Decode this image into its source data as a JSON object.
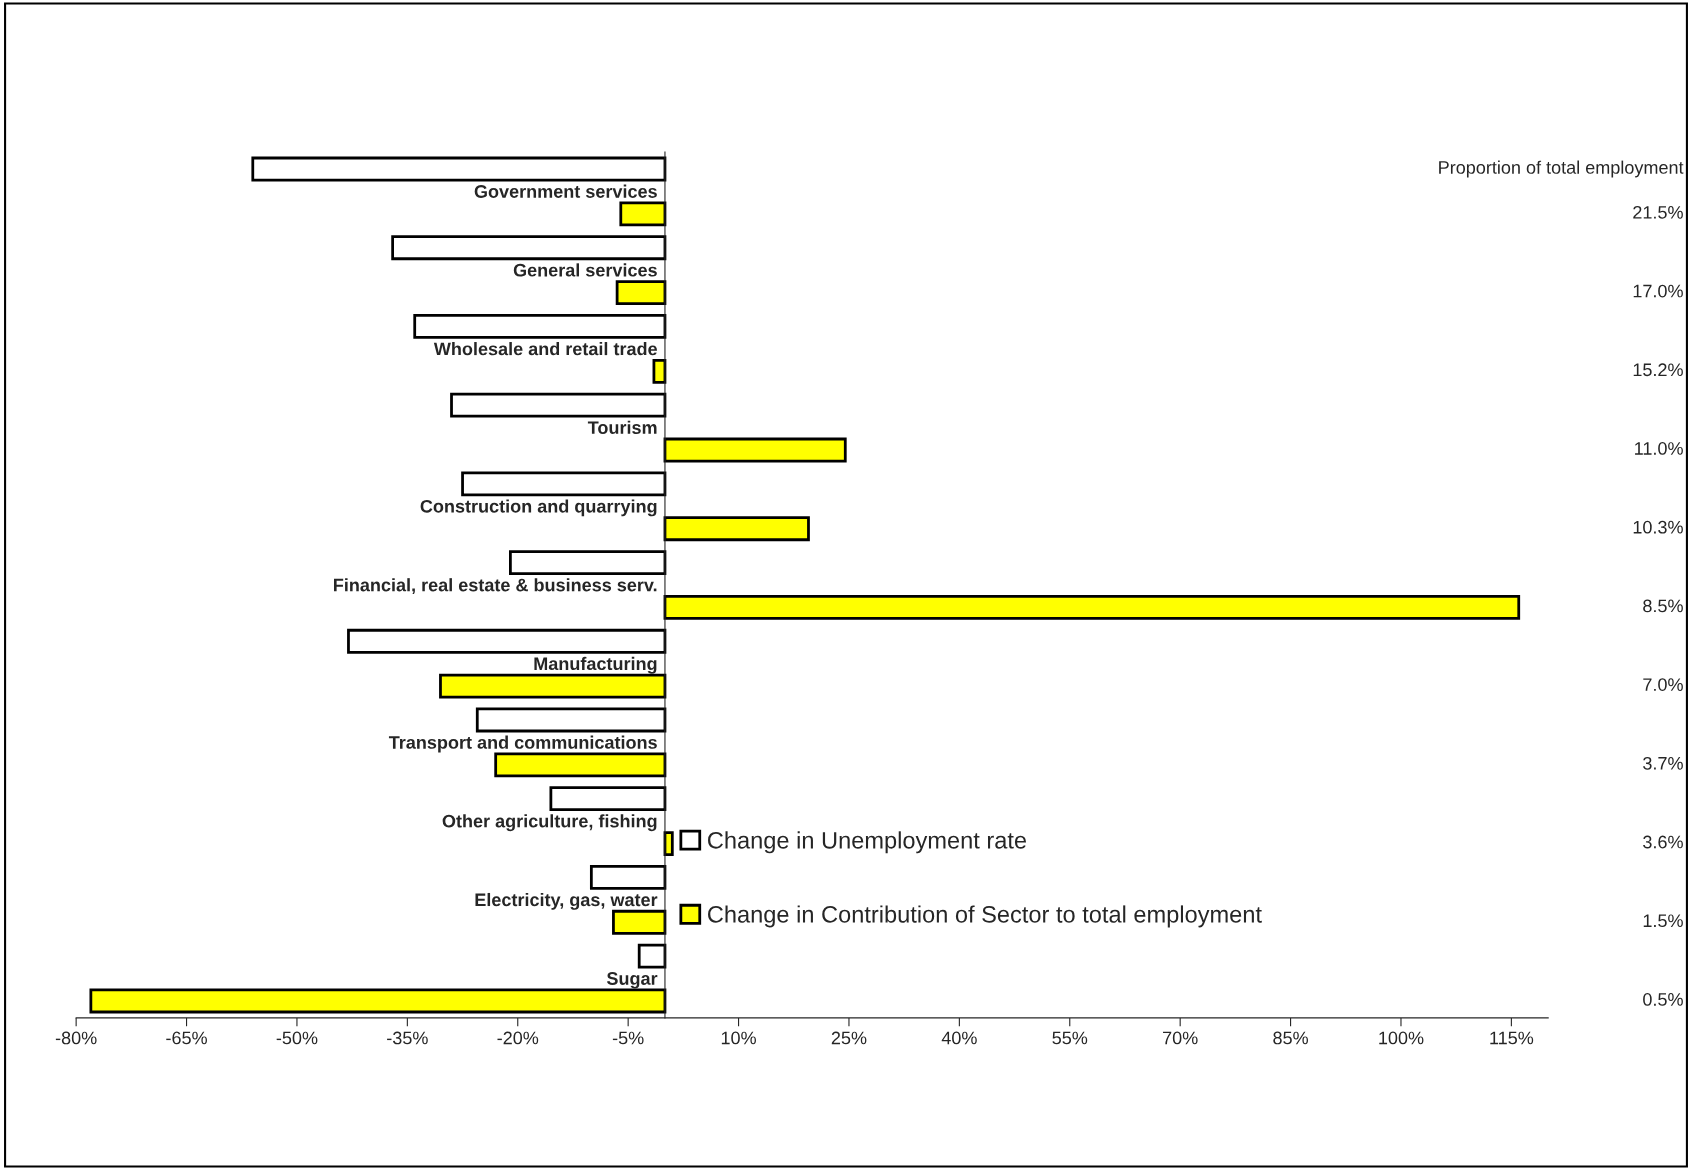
{
  "chart_data": {
    "type": "bar",
    "orientation": "horizontal",
    "categories": [
      "Government services",
      "General services",
      "Wholesale and retail trade",
      "Tourism",
      "Construction and quarrying",
      "Financial, real estate & business serv.",
      "Manufacturing",
      "Transport and communications",
      "Other agriculture, fishing",
      "Electricity, gas, water",
      "Sugar"
    ],
    "series": [
      {
        "name": "Change in Unemployment rate",
        "color": "#ffffff",
        "values": [
          -56,
          -37,
          -34,
          -29,
          -27.5,
          -21,
          -43,
          -25.5,
          -15.5,
          -10,
          -3.5
        ]
      },
      {
        "name": "Change in Contribution of Sector to total employment",
        "color": "#ffff00",
        "values": [
          -6,
          -6.5,
          -1.5,
          24.5,
          19.5,
          116,
          -30.5,
          -23,
          1,
          -7,
          -78
        ]
      }
    ],
    "xlim": [
      -80,
      120
    ],
    "xticks": [
      {
        "value": -80,
        "label": "-80%"
      },
      {
        "value": -65,
        "label": "-65%"
      },
      {
        "value": -50,
        "label": "-50%"
      },
      {
        "value": -35,
        "label": "-35%"
      },
      {
        "value": -20,
        "label": "-20%"
      },
      {
        "value": -5,
        "label": "-5%"
      },
      {
        "value": 10,
        "label": "10%"
      },
      {
        "value": 25,
        "label": "25%"
      },
      {
        "value": 40,
        "label": "40%"
      },
      {
        "value": 55,
        "label": "55%"
      },
      {
        "value": 70,
        "label": "70%"
      },
      {
        "value": 85,
        "label": "85%"
      },
      {
        "value": 100,
        "label": "100%"
      },
      {
        "value": 115,
        "label": "115%"
      }
    ],
    "annotations": [
      "Proportion of total employment",
      "21.5%",
      "17.0%",
      "15.2%",
      "11.0%",
      "10.3%",
      "8.5%",
      "7.0%",
      "3.7%",
      "3.6%",
      "1.5%",
      "0.5%"
    ],
    "legend": "bottom right",
    "grid": false
  }
}
